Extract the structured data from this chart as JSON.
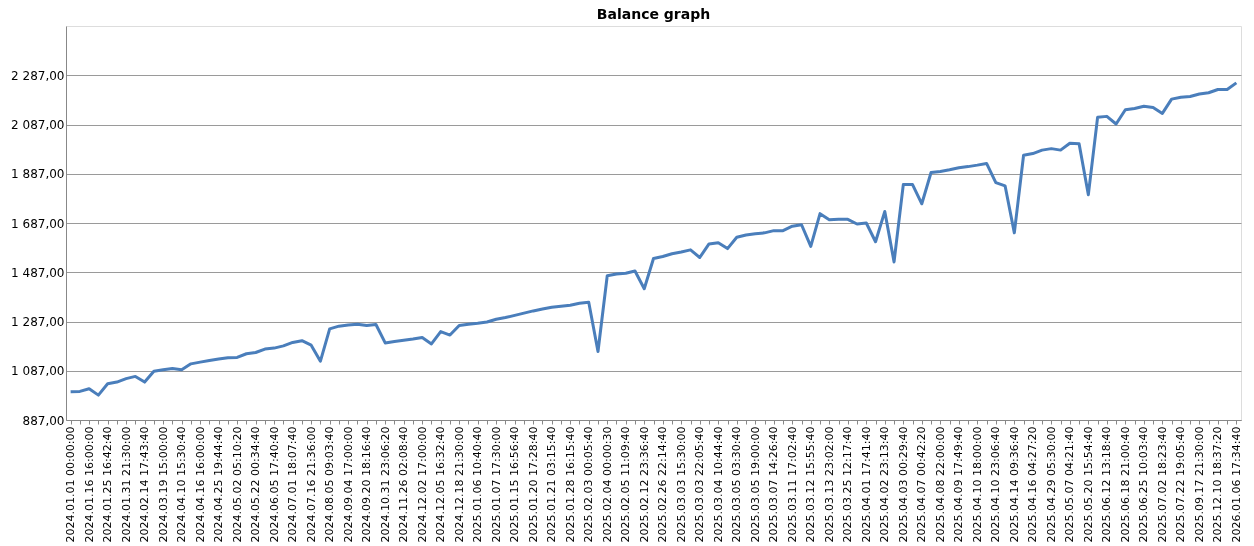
{
  "chart_data": {
    "type": "line",
    "title": "Balance graph",
    "categories": [
      "2024.01.01 00:00:00",
      null,
      "2024.01.16 16:00:00",
      null,
      "2024.01.25 16:42:40",
      null,
      "2024.01.31 21:30:00",
      null,
      "2024.02.14 17:43:40",
      null,
      "2024.03.19 15:00:00",
      null,
      "2024.04.10 15:30:40",
      null,
      "2024.04.16 16:00:00",
      null,
      "2024.04.25 19:44:40",
      null,
      "2024.05.02 05:10:20",
      null,
      "2024.05.22 00:34:40",
      null,
      "2024.06.05 17:40:40",
      null,
      "2024.07.01 18:07:40",
      null,
      "2024.07.16 21:36:00",
      null,
      "2024.08.05 09:03:40",
      null,
      "2024.09.04 17:00:00",
      null,
      "2024.09.20 18:16:40",
      null,
      "2024.10.31 23:06:20",
      null,
      "2024.11.26 02:08:40",
      null,
      "2024.12.02 17:00:00",
      null,
      "2024.12.05 16:32:40",
      null,
      "2024.12.18 21:30:00",
      null,
      "2025.01.06 10:40:40",
      null,
      "2025.01.07 17:30:00",
      null,
      "2025.01.15 16:56:40",
      null,
      "2025.01.20 17:28:40",
      null,
      "2025.01.21 03:15:40",
      null,
      "2025.01.28 16:15:40",
      null,
      "2025.02.03 00:05:40",
      null,
      "2025.02.04 00:00:30",
      null,
      "2025.02.05 11:09:40",
      null,
      "2025.02.12 23:36:40",
      null,
      "2025.02.26 22:14:40",
      null,
      "2025.03.03 15:30:00",
      null,
      "2025.03.03 22:05:40",
      null,
      "2025.03.04 10:44:40",
      null,
      "2025.03.05 03:30:40",
      null,
      "2025.03.05 19:00:00",
      null,
      "2025.03.07 14:26:40",
      null,
      "2025.03.11 17:02:40",
      null,
      "2025.03.12 15:55:40",
      null,
      "2025.03.13 23:02:00",
      null,
      "2025.03.25 12:17:40",
      null,
      "2025.04.01 17:41:40",
      null,
      "2025.04.02 23:13:40",
      null,
      "2025.04.03 00:29:40",
      null,
      "2025.04.07 00:42:20",
      null,
      "2025.04.08 22:00:00",
      null,
      "2025.04.09 17:49:40",
      null,
      "2025.04.10 18:00:00",
      null,
      "2025.04.10 23:06:40",
      null,
      "2025.04.14 09:36:40",
      null,
      "2025.04.16 04:27:20",
      null,
      "2025.04.29 05:30:00",
      null,
      "2025.05.07 04:21:40",
      null,
      "2025.05.20 15:54:40",
      null,
      "2025.06.12 13:18:40",
      null,
      "2025.06.18 21:00:40",
      null,
      "2025.06.25 10:03:40",
      null,
      "2025.07.02 18:23:40",
      null,
      "2025.07.22 19:05:40",
      null,
      "2025.09.17 21:30:00",
      null,
      "2025.12.10 18:37:20",
      null,
      "2026.01.06 17:34:40"
    ],
    "series": [
      {
        "color": "#4a7ebb",
        "values": [
          1002,
          1003,
          1014,
          988,
          1034,
          1041,
          1055,
          1064,
          1041,
          1085,
          1091,
          1096,
          1091,
          1115,
          1122,
          1129,
          1135,
          1140,
          1141,
          1156,
          1161,
          1175,
          1179,
          1188,
          1202,
          1209,
          1191,
          1126,
          1257,
          1268,
          1273,
          1276,
          1271,
          1275,
          1200,
          1206,
          1211,
          1216,
          1222,
          1196,
          1246,
          1232,
          1271,
          1276,
          1280,
          1285,
          1296,
          1303,
          1312,
          1321,
          1330,
          1338,
          1345,
          1349,
          1353,
          1361,
          1365,
          1165,
          1473,
          1480,
          1483,
          1492,
          1420,
          1543,
          1551,
          1562,
          1569,
          1578,
          1547,
          1602,
          1607,
          1583,
          1629,
          1638,
          1643,
          1647,
          1656,
          1656,
          1674,
          1680,
          1592,
          1725,
          1700,
          1702,
          1702,
          1683,
          1687,
          1611,
          1734,
          1529,
          1843,
          1843,
          1765,
          1892,
          1896,
          1903,
          1911,
          1916,
          1922,
          1929,
          1851,
          1838,
          1647,
          1962,
          1969,
          1983,
          1989,
          1983,
          2011,
          2009,
          1802,
          2116,
          2120,
          2089,
          2147,
          2152,
          2161,
          2156,
          2132,
          2190,
          2198,
          2201,
          2211,
          2216,
          2229,
          2229,
          2256
        ]
      }
    ],
    "ylim": [
      887,
      2487
    ],
    "yticks": [
      {
        "value": 887,
        "label": "887,00"
      },
      {
        "value": 1087,
        "label": "1 087,00"
      },
      {
        "value": 1287,
        "label": "1 287,00"
      },
      {
        "value": 1487,
        "label": "1 487,00"
      },
      {
        "value": 1687,
        "label": "1 687,00"
      },
      {
        "value": 1887,
        "label": "1 887,00"
      },
      {
        "value": 2087,
        "label": "2 087,00"
      },
      {
        "value": 2287,
        "label": "2 287,00"
      }
    ],
    "grid": "y",
    "marker": "none",
    "line_style": "solid"
  }
}
